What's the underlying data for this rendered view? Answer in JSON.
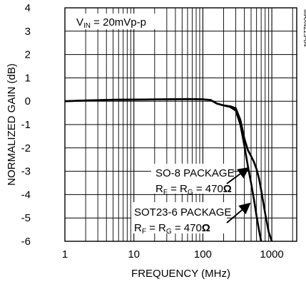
{
  "chart_data": {
    "type": "line",
    "xlabel": "FREQUENCY (MHz)",
    "ylabel": "NORMALIZED GAIN (dB)",
    "x_scale": "log",
    "xlim": [
      1,
      3000
    ],
    "ylim": [
      -6,
      4
    ],
    "grid": true,
    "x_ticks": [
      "1",
      "10",
      "100",
      "1000"
    ],
    "y_ticks": [
      "4",
      "3",
      "2",
      "1",
      "0",
      "-1",
      "-2",
      "-3",
      "-4",
      "-5",
      "-6"
    ],
    "condition_label": {
      "main": "V",
      "sub": "IN",
      "rest": " = 20mVp-p"
    },
    "figure_id": "MAX4223-04",
    "series": [
      {
        "name": "SO-8 PACKAGE",
        "x": [
          1,
          2,
          5,
          10,
          30,
          60,
          100,
          130,
          160,
          200,
          250,
          300,
          350,
          400,
          450,
          500,
          550,
          600,
          650,
          700,
          800,
          900,
          1000
        ],
        "y": [
          0.0,
          0.03,
          0.06,
          0.07,
          0.08,
          0.09,
          0.08,
          0.05,
          -0.1,
          -0.18,
          -0.22,
          -0.3,
          -0.8,
          -1.6,
          -2.1,
          -2.35,
          -2.6,
          -2.9,
          -3.3,
          -3.8,
          -4.8,
          -5.6,
          -6.0
        ]
      },
      {
        "name": "SOT23-6 PACKAGE",
        "x": [
          1,
          2,
          5,
          10,
          30,
          60,
          100,
          130,
          160,
          200,
          250,
          300,
          350,
          400,
          450,
          500,
          550,
          600,
          650,
          700
        ],
        "y": [
          0.0,
          0.03,
          0.06,
          0.07,
          0.08,
          0.09,
          0.08,
          0.05,
          -0.1,
          -0.18,
          -0.25,
          -0.4,
          -1.0,
          -1.9,
          -2.8,
          -3.5,
          -4.2,
          -4.9,
          -5.5,
          -6.0
        ]
      }
    ],
    "annotations": [
      {
        "line1": "SO-8 PACKAGE",
        "line2_r1": "F",
        "line2_mid": " = R",
        "line2_r2": "G",
        "line2_val": " = 470",
        "unit": "Ω"
      },
      {
        "line1": "SOT23-6 PACKAGE",
        "line2_r1": "F",
        "line2_mid": " = R",
        "line2_r2": "G",
        "line2_val": " = 470",
        "unit": "Ω"
      }
    ]
  }
}
